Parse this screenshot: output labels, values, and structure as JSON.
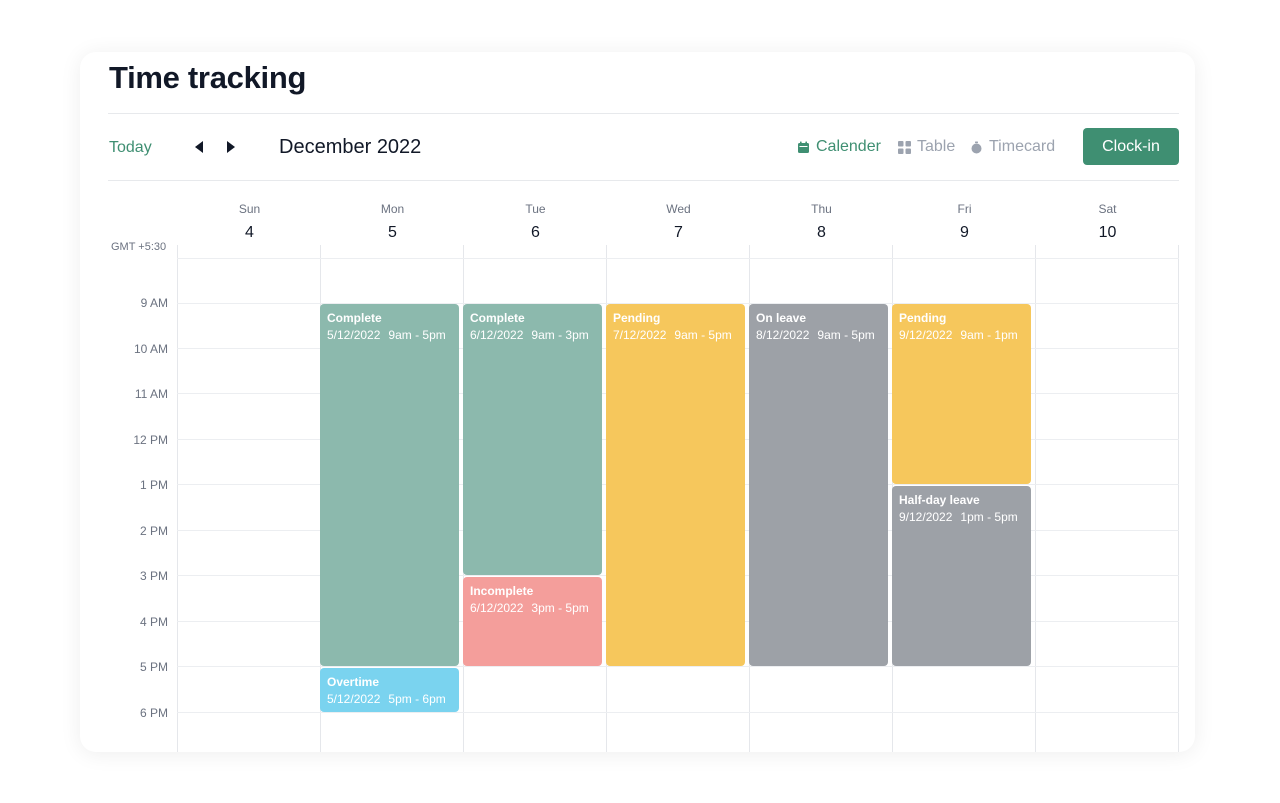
{
  "header": {
    "title": "Time tracking"
  },
  "toolbar": {
    "today": "Today",
    "month": "December 2022",
    "views": {
      "calendar": "Calender",
      "table": "Table",
      "timecard": "Timecard"
    },
    "clock_in": "Clock-in"
  },
  "calendar": {
    "timezone": "GMT +5:30",
    "days": [
      {
        "name": "Sun",
        "num": "4"
      },
      {
        "name": "Mon",
        "num": "5"
      },
      {
        "name": "Tue",
        "num": "6"
      },
      {
        "name": "Wed",
        "num": "7"
      },
      {
        "name": "Thu",
        "num": "8"
      },
      {
        "name": "Fri",
        "num": "9"
      },
      {
        "name": "Sat",
        "num": "10"
      }
    ],
    "hours": [
      "9 AM",
      "10 AM",
      "11 AM",
      "12 PM",
      "1 PM",
      "2 PM",
      "3 PM",
      "4 PM",
      "5 PM",
      "6 PM"
    ],
    "events": [
      {
        "title": "Complete",
        "date": "5/12/2022",
        "time": "9am - 5pm"
      },
      {
        "title": "Overtime",
        "date": "5/12/2022",
        "time": "5pm - 6pm"
      },
      {
        "title": "Complete",
        "date": "6/12/2022",
        "time": "9am - 3pm"
      },
      {
        "title": "Incomplete",
        "date": "6/12/2022",
        "time": "3pm - 5pm"
      },
      {
        "title": "Pending",
        "date": "7/12/2022",
        "time": "9am - 5pm"
      },
      {
        "title": "On leave",
        "date": "8/12/2022",
        "time": "9am - 5pm"
      },
      {
        "title": "Pending",
        "date": "9/12/2022",
        "time": "9am - 1pm"
      },
      {
        "title": "Half-day leave",
        "date": "9/12/2022",
        "time": "1pm - 5pm"
      }
    ],
    "status_colors": {
      "complete": "#8cb9ad",
      "overtime": "#7ad3ef",
      "incomplete": "#f49e9b",
      "pending": "#f6c75c",
      "leave": "#9da1a7"
    }
  },
  "colors": {
    "accent": "#3f8f72"
  }
}
